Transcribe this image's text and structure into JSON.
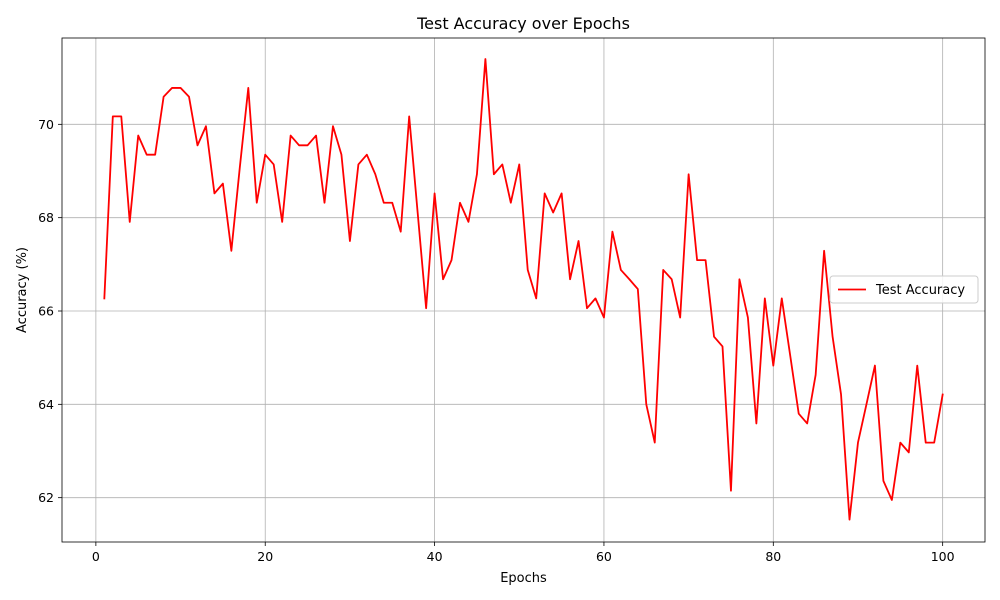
{
  "chart_data": {
    "type": "line",
    "title": "Test Accuracy over Epochs",
    "xlabel": "Epochs",
    "ylabel": "Accuracy (%)",
    "xlim": [
      -4,
      105
    ],
    "ylim": [
      61.05,
      71.85
    ],
    "xticks": [
      0,
      20,
      40,
      60,
      80,
      100
    ],
    "yticks": [
      62,
      64,
      66,
      68,
      70
    ],
    "grid": true,
    "legend_position": "center-right",
    "series": [
      {
        "name": "Test Accuracy",
        "color": "#ff0000",
        "x": [
          1,
          2,
          3,
          4,
          5,
          6,
          7,
          8,
          9,
          10,
          11,
          12,
          13,
          14,
          15,
          16,
          17,
          18,
          19,
          20,
          21,
          22,
          23,
          24,
          25,
          26,
          27,
          28,
          29,
          30,
          31,
          32,
          33,
          34,
          35,
          36,
          37,
          38,
          39,
          40,
          41,
          42,
          43,
          44,
          45,
          46,
          47,
          48,
          49,
          50,
          51,
          52,
          53,
          54,
          55,
          56,
          57,
          58,
          59,
          60,
          61,
          62,
          63,
          64,
          65,
          66,
          67,
          68,
          69,
          70,
          71,
          72,
          73,
          74,
          75,
          76,
          77,
          78,
          79,
          80,
          81,
          82,
          83,
          84,
          85,
          86,
          87,
          88,
          89,
          90,
          91,
          92,
          93,
          94,
          95,
          96,
          97,
          98,
          99,
          100
        ],
        "y": [
          66.27,
          70.17,
          70.17,
          67.91,
          69.76,
          69.35,
          69.35,
          70.59,
          70.78,
          70.78,
          70.59,
          69.55,
          69.96,
          68.52,
          68.73,
          67.29,
          69.08,
          70.78,
          68.32,
          69.35,
          69.14,
          67.91,
          69.76,
          69.55,
          69.55,
          69.76,
          68.32,
          69.96,
          69.35,
          67.5,
          69.14,
          69.35,
          68.93,
          68.32,
          68.32,
          67.7,
          70.17,
          68.11,
          66.06,
          68.52,
          66.68,
          67.09,
          68.32,
          67.91,
          68.93,
          71.4,
          68.93,
          69.14,
          68.32,
          69.14,
          66.88,
          66.27,
          68.52,
          68.11,
          68.52,
          66.68,
          67.5,
          66.06,
          66.27,
          65.86,
          67.7,
          66.88,
          66.68,
          66.47,
          64.0,
          63.18,
          66.88,
          66.68,
          65.86,
          68.93,
          67.09,
          67.09,
          65.45,
          65.24,
          62.15,
          66.68,
          65.86,
          63.59,
          66.27,
          64.83,
          66.27,
          65.04,
          63.8,
          63.59,
          64.63,
          67.29,
          65.45,
          64.21,
          61.53,
          63.18,
          64.0,
          64.83,
          62.36,
          61.95,
          63.18,
          62.97,
          64.83,
          63.18,
          63.18,
          64.21
        ]
      }
    ]
  }
}
